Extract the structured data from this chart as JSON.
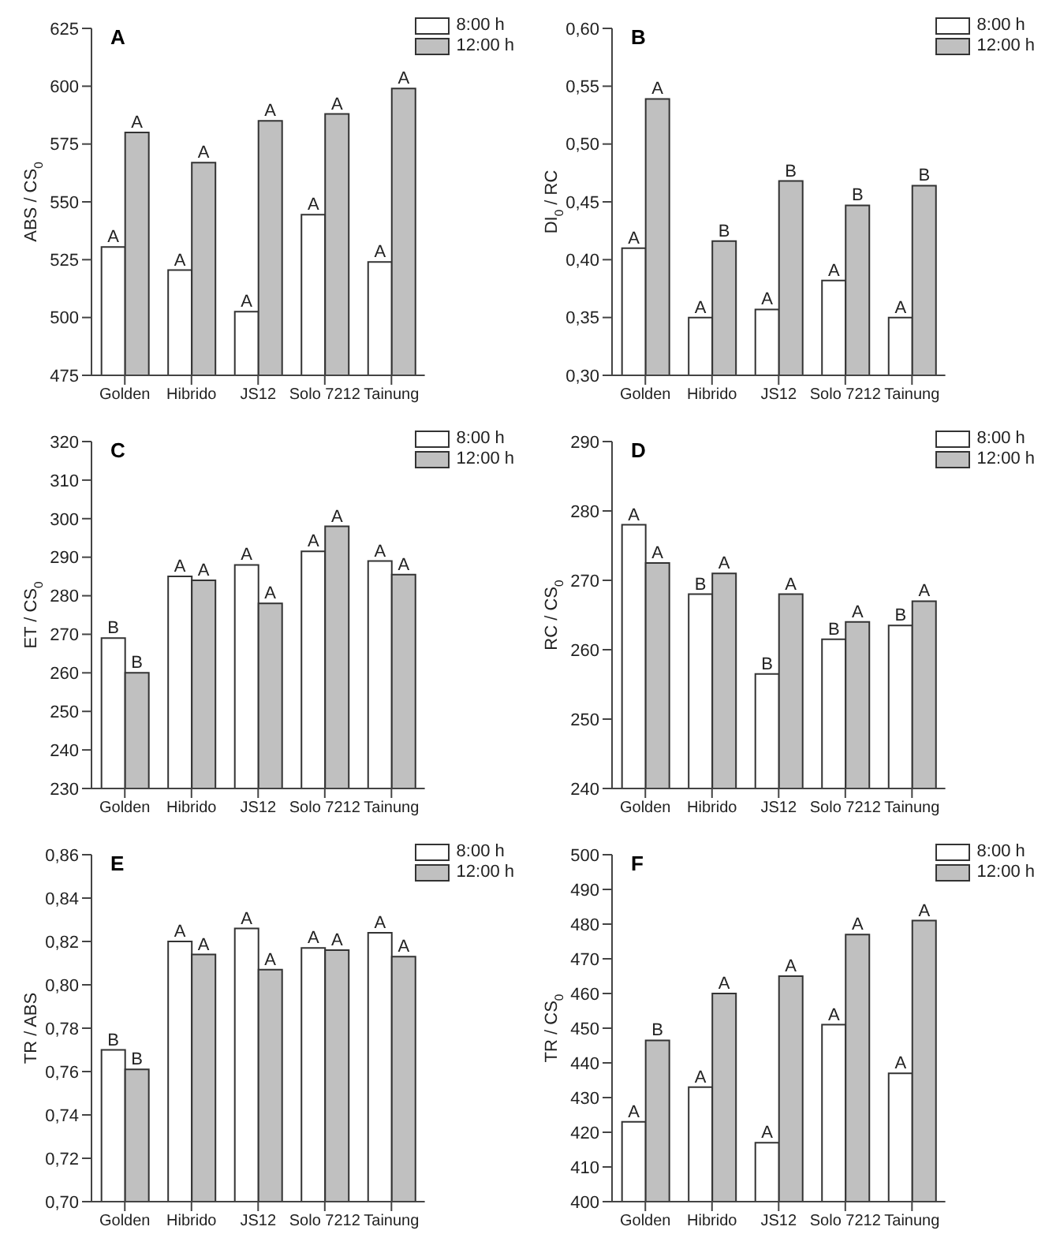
{
  "chart_data": [
    {
      "type": "bar",
      "title": "A",
      "ylabel": "ABS / CS$_{0}$",
      "categories": [
        "Golden",
        "Hibrido",
        "JS12",
        "Solo 7212",
        "Tainung"
      ],
      "ylim": [
        475,
        625
      ],
      "yticks": [
        475,
        500,
        525,
        550,
        575,
        600,
        625
      ],
      "grid": false,
      "legend": "top right",
      "series": [
        {
          "name": "8:00 h",
          "color": "#ffffff",
          "values": [
            530.5,
            520.5,
            502.5,
            544.5,
            524
          ],
          "value_labels": [
            "A",
            "A",
            "A",
            "A",
            "A"
          ]
        },
        {
          "name": "12:00 h",
          "color": "#c0c0c0",
          "values": [
            580,
            567,
            585,
            588,
            599
          ],
          "value_labels": [
            "A",
            "A",
            "A",
            "A",
            "A"
          ]
        }
      ]
    },
    {
      "type": "bar",
      "title": "B",
      "ylabel": "DI$_{0}$ / RC",
      "categories": [
        "Golden",
        "Hibrido",
        "JS12",
        "Solo 7212",
        "Tainung"
      ],
      "ylim": [
        0.3,
        0.6
      ],
      "yticks": [
        {
          "value": 0.3,
          "label": "0,30"
        },
        {
          "value": 0.35,
          "label": "0,35"
        },
        {
          "value": 0.4,
          "label": "0,40"
        },
        {
          "value": 0.45,
          "label": "0,45"
        },
        {
          "value": 0.5,
          "label": "0,50"
        },
        {
          "value": 0.55,
          "label": "0,55"
        },
        {
          "value": 0.6,
          "label": "0,60"
        }
      ],
      "grid": false,
      "legend": "top right",
      "series": [
        {
          "name": "8:00 h",
          "color": "#ffffff",
          "values": [
            0.41,
            0.35,
            0.357,
            0.382,
            0.35
          ],
          "value_labels": [
            "A",
            "A",
            "A",
            "A",
            "A"
          ]
        },
        {
          "name": "12:00 h",
          "color": "#c0c0c0",
          "values": [
            0.539,
            0.416,
            0.468,
            0.447,
            0.464
          ],
          "value_labels": [
            "A",
            "B",
            "B",
            "B",
            "B"
          ]
        }
      ]
    },
    {
      "type": "bar",
      "title": "C",
      "ylabel": "ET / CS$_{0}$",
      "categories": [
        "Golden",
        "Hibrido",
        "JS12",
        "Solo 7212",
        "Tainung"
      ],
      "ylim": [
        230,
        320
      ],
      "yticks": [
        230,
        240,
        250,
        260,
        270,
        280,
        290,
        300,
        310,
        320
      ],
      "grid": false,
      "legend": "top right",
      "series": [
        {
          "name": "8:00 h",
          "color": "#ffffff",
          "values": [
            269,
            285,
            288,
            291.5,
            289
          ],
          "value_labels": [
            "B",
            "A",
            "A",
            "A",
            "A"
          ]
        },
        {
          "name": "12:00 h",
          "color": "#c0c0c0",
          "values": [
            260,
            284,
            278,
            298,
            285.5
          ],
          "value_labels": [
            "B",
            "A",
            "A",
            "A",
            "A"
          ]
        }
      ]
    },
    {
      "type": "bar",
      "title": "D",
      "ylabel": "RC / CS$_{0}$",
      "categories": [
        "Golden",
        "Hibrido",
        "JS12",
        "Solo 7212",
        "Tainung"
      ],
      "ylim": [
        240,
        290
      ],
      "yticks": [
        240,
        250,
        260,
        270,
        280,
        290
      ],
      "grid": false,
      "legend": "top right",
      "series": [
        {
          "name": "8:00 h",
          "color": "#ffffff",
          "values": [
            278,
            268,
            256.5,
            261.5,
            263.5
          ],
          "value_labels": [
            "A",
            "B",
            "B",
            "B",
            "B"
          ]
        },
        {
          "name": "12:00 h",
          "color": "#c0c0c0",
          "values": [
            272.5,
            271,
            268,
            264,
            267
          ],
          "value_labels": [
            "A",
            "A",
            "A",
            "A",
            "A"
          ]
        }
      ]
    },
    {
      "type": "bar",
      "title": "E",
      "ylabel": "TR / ABS",
      "categories": [
        "Golden",
        "Hibrido",
        "JS12",
        "Solo 7212",
        "Tainung"
      ],
      "ylim": [
        0.7,
        0.86
      ],
      "yticks": [
        {
          "value": 0.7,
          "label": "0,70"
        },
        {
          "value": 0.72,
          "label": "0,72"
        },
        {
          "value": 0.74,
          "label": "0,74"
        },
        {
          "value": 0.76,
          "label": "0,76"
        },
        {
          "value": 0.78,
          "label": "0,78"
        },
        {
          "value": 0.8,
          "label": "0,80"
        },
        {
          "value": 0.82,
          "label": "0,82"
        },
        {
          "value": 0.84,
          "label": "0,84"
        },
        {
          "value": 0.86,
          "label": "0,86"
        }
      ],
      "grid": false,
      "legend": "top right",
      "series": [
        {
          "name": "8:00 h",
          "color": "#ffffff",
          "values": [
            0.77,
            0.82,
            0.826,
            0.817,
            0.824
          ],
          "value_labels": [
            "B",
            "A",
            "A",
            "A",
            "A"
          ]
        },
        {
          "name": "12:00 h",
          "color": "#c0c0c0",
          "values": [
            0.761,
            0.814,
            0.807,
            0.816,
            0.813
          ],
          "value_labels": [
            "B",
            "A",
            "A",
            "A",
            "A"
          ]
        }
      ]
    },
    {
      "type": "bar",
      "title": "F",
      "ylabel": "TR / CS$_{0}$",
      "categories": [
        "Golden",
        "Hibrido",
        "JS12",
        "Solo 7212",
        "Tainung"
      ],
      "ylim": [
        400,
        500
      ],
      "yticks": [
        400,
        410,
        420,
        430,
        440,
        450,
        460,
        470,
        480,
        490,
        500
      ],
      "grid": false,
      "legend": "top right",
      "series": [
        {
          "name": "8:00 h",
          "color": "#ffffff",
          "values": [
            423,
            433,
            417,
            451,
            437
          ],
          "value_labels": [
            "A",
            "A",
            "A",
            "A",
            "A"
          ]
        },
        {
          "name": "12:00 h",
          "color": "#c0c0c0",
          "values": [
            446.5,
            460,
            465,
            477,
            481
          ],
          "value_labels": [
            "B",
            "A",
            "A",
            "A",
            "A"
          ]
        }
      ]
    }
  ]
}
